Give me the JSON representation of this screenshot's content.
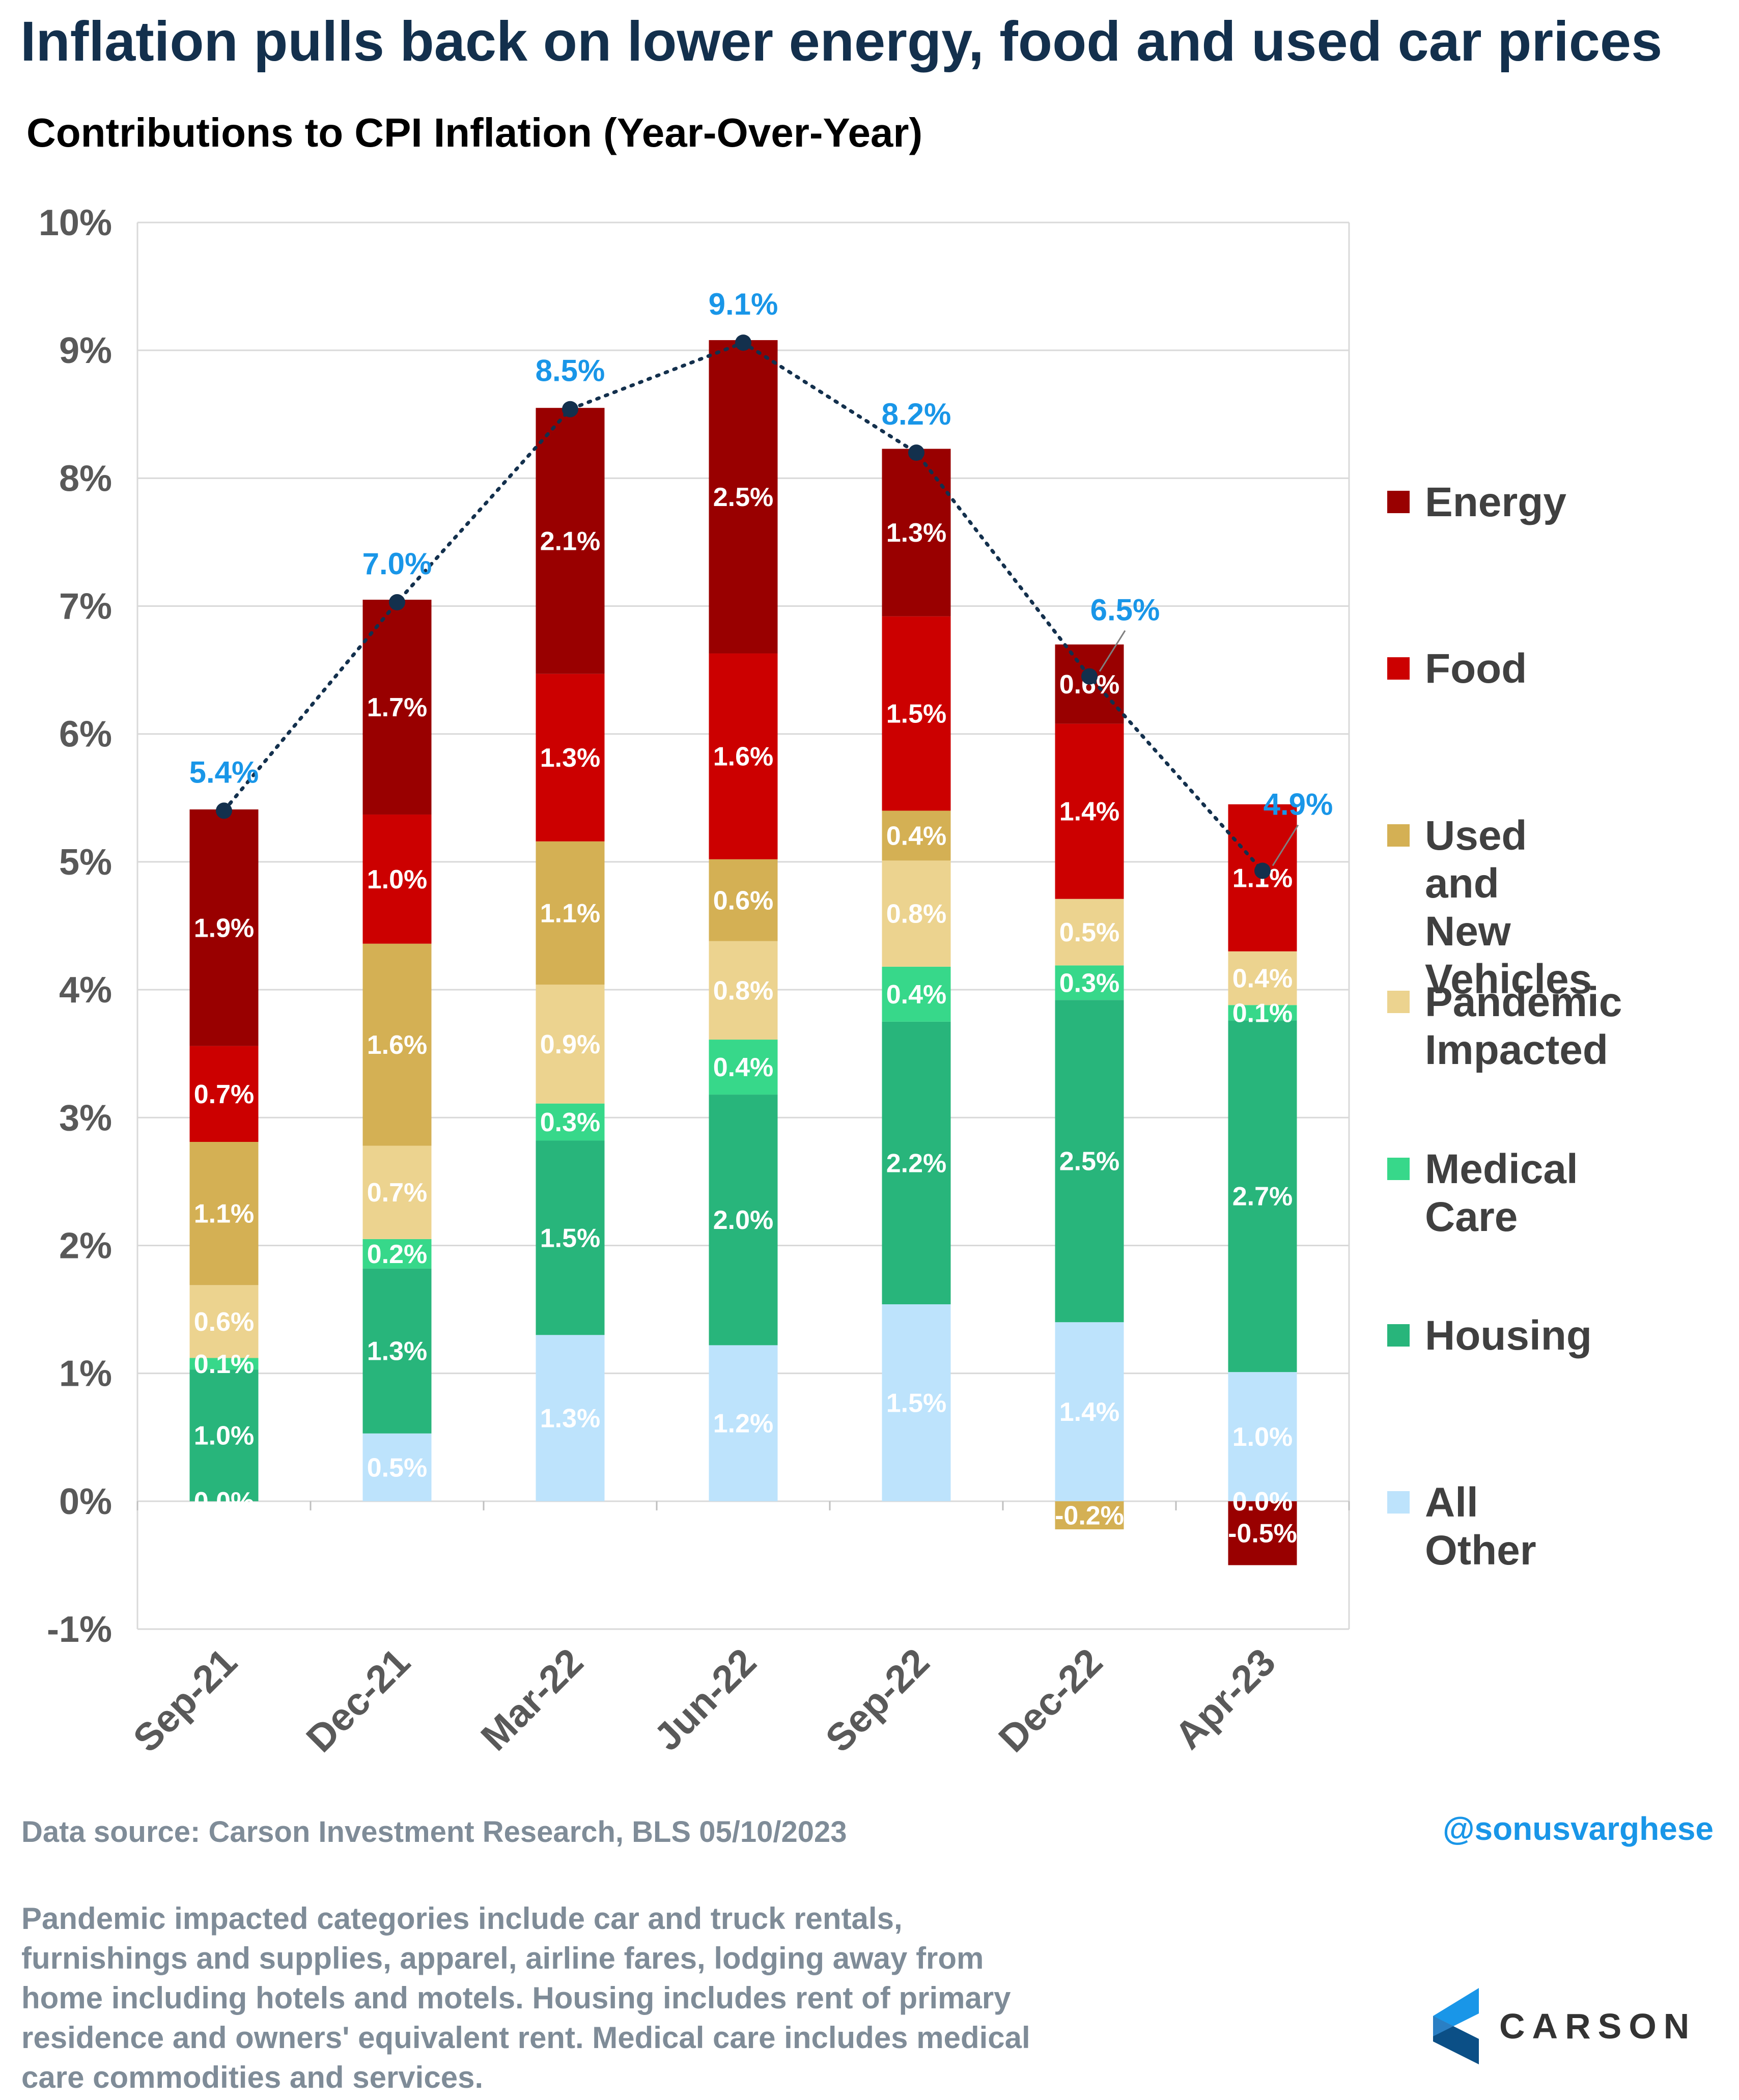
{
  "title": "Inflation pulls back on lower energy, food and used car prices",
  "subtitle": "Contributions to CPI Inflation (Year-Over-Year)",
  "source": "Data source: Carson Investment Research, BLS   05/10/2023",
  "handle": "@sonusvarghese",
  "footnote": "Pandemic impacted categories include car and truck rentals, furnishings and supplies, apparel, airline fares, lodging away from home including hotels and motels. Housing includes rent of primary residence and owners' equivalent rent. Medical care includes medical care commodities and services.",
  "logo": {
    "text": "CARSON",
    "icon": "carson-chevron-icon",
    "color": "#1996e8"
  },
  "legend": [
    {
      "name": "Energy",
      "color": "#990000"
    },
    {
      "name": "Food",
      "color": "#cc0000"
    },
    {
      "name": "Used and New\nVehicles",
      "color": "#d4b054"
    },
    {
      "name": "Pandemic\nImpacted",
      "color": "#ecd38f"
    },
    {
      "name": "Medical Care",
      "color": "#37d88a"
    },
    {
      "name": "Housing",
      "color": "#28b57b"
    },
    {
      "name": "All Other",
      "color": "#bde3fc"
    }
  ],
  "chart_data": {
    "type": "bar",
    "stacked": true,
    "categories": [
      "Sep-21",
      "Dec-21",
      "Mar-22",
      "Jun-22",
      "Sep-22",
      "Dec-22",
      "Apr-23"
    ],
    "ylim": [
      -0.01,
      0.1
    ],
    "yticks": [
      "-1%",
      "0%",
      "1%",
      "2%",
      "3%",
      "4%",
      "5%",
      "6%",
      "7%",
      "8%",
      "9%",
      "10%"
    ],
    "grid": true,
    "legend_position": "right",
    "series": [
      {
        "name": "All Other",
        "color": "#bde3fc",
        "values": [
          0.0,
          0.0053,
          0.013,
          0.0122,
          0.0154,
          0.014,
          0.0101
        ],
        "labels": [
          "0.0%",
          "0.5%",
          "1.3%",
          "1.2%",
          "1.5%",
          "1.4%",
          "1.0%"
        ]
      },
      {
        "name": "Housing",
        "color": "#28b57b",
        "values": [
          0.0103,
          0.0129,
          0.0152,
          0.0196,
          0.0221,
          0.0252,
          0.0275
        ],
        "labels": [
          "1.0%",
          "1.3%",
          "1.5%",
          "2.0%",
          "2.2%",
          "2.5%",
          "2.7%"
        ]
      },
      {
        "name": "Medical Care",
        "color": "#37d88a",
        "values": [
          0.0009,
          0.0023,
          0.0029,
          0.0043,
          0.0043,
          0.0027,
          0.0012
        ],
        "labels": [
          "0.1%",
          "0.2%",
          "0.3%",
          "0.4%",
          "0.4%",
          "0.3%",
          "0.1%"
        ]
      },
      {
        "name": "Pandemic Impacted",
        "color": "#ecd38f",
        "values": [
          0.0057,
          0.0073,
          0.0093,
          0.0077,
          0.0083,
          0.0052,
          0.0042
        ],
        "labels": [
          "0.6%",
          "0.7%",
          "0.9%",
          "0.8%",
          "0.8%",
          "0.5%",
          "0.4%"
        ]
      },
      {
        "name": "Used and New Vehicles",
        "color": "#d4b054",
        "values": [
          0.0112,
          0.0158,
          0.0112,
          0.0064,
          0.0039,
          -0.0022,
          0.0
        ],
        "labels": [
          "1.1%",
          "1.6%",
          "1.1%",
          "0.6%",
          "0.4%",
          "-0.2%",
          ""
        ]
      },
      {
        "name": "Food",
        "color": "#cc0000",
        "values": [
          0.0075,
          0.0101,
          0.0131,
          0.0161,
          0.0152,
          0.0137,
          0.0115
        ],
        "labels": [
          "0.7%",
          "1.0%",
          "1.3%",
          "1.6%",
          "1.5%",
          "1.4%",
          "1.1%"
        ]
      },
      {
        "name": "Energy",
        "color": "#990000",
        "values": [
          0.0185,
          0.0168,
          0.0208,
          0.0245,
          0.0131,
          0.0062,
          -0.005
        ],
        "labels": [
          "1.9%",
          "1.7%",
          "2.1%",
          "2.5%",
          "1.3%",
          "0.6%",
          "-0.5%"
        ]
      }
    ],
    "zero_labels": {
      "Apr-23": "0.0%"
    },
    "total": {
      "values": [
        0.054,
        0.0703,
        0.0854,
        0.0906,
        0.082,
        0.0645,
        0.0493
      ],
      "labels": [
        "5.4%",
        "7.0%",
        "8.5%",
        "9.1%",
        "8.2%",
        "6.5%",
        "4.9%"
      ],
      "style": "dotted-line-with-markers",
      "label_color": "#1996e8"
    }
  }
}
